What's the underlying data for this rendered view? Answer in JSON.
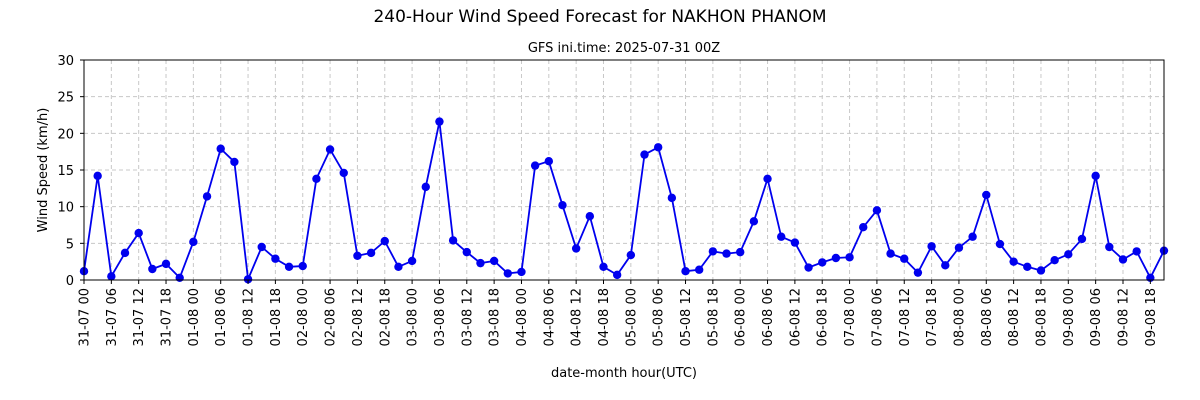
{
  "chart_data": {
    "type": "line",
    "title": "240-Hour Wind Speed Forecast for NAKHON PHANOM",
    "subtitle": "GFS ini.time: 2025-07-31 00Z",
    "xlabel": "date-month hour(UTC)",
    "ylabel": "Wind Speed (km/h)",
    "ylim": [
      0,
      30
    ],
    "yticks": [
      0,
      5,
      10,
      15,
      20,
      25,
      30
    ],
    "grid": true,
    "x_tick_labels": [
      "31-07 00",
      "31-07 06",
      "31-07 12",
      "31-07 18",
      "01-08 00",
      "01-08 06",
      "01-08 12",
      "01-08 18",
      "02-08 00",
      "02-08 06",
      "02-08 12",
      "02-08 18",
      "03-08 00",
      "03-08 06",
      "03-08 12",
      "03-08 18",
      "04-08 00",
      "04-08 06",
      "04-08 12",
      "04-08 18",
      "05-08 00",
      "05-08 06",
      "05-08 12",
      "05-08 18",
      "06-08 00",
      "06-08 06",
      "06-08 12",
      "06-08 18",
      "07-08 00",
      "07-08 06",
      "07-08 12",
      "07-08 18",
      "08-08 00",
      "08-08 06",
      "08-08 12",
      "08-08 18",
      "09-08 00",
      "09-08 06",
      "09-08 12",
      "09-08 18"
    ],
    "series": [
      {
        "color": "#0000ee",
        "x": [
          "31-07 00",
          "31-07 03",
          "31-07 06",
          "31-07 09",
          "31-07 12",
          "31-07 15",
          "31-07 18",
          "31-07 21",
          "01-08 00",
          "01-08 03",
          "01-08 06",
          "01-08 09",
          "01-08 12",
          "01-08 15",
          "01-08 18",
          "01-08 21",
          "02-08 00",
          "02-08 03",
          "02-08 06",
          "02-08 09",
          "02-08 12",
          "02-08 15",
          "02-08 18",
          "02-08 21",
          "03-08 00",
          "03-08 03",
          "03-08 06",
          "03-08 09",
          "03-08 12",
          "03-08 15",
          "03-08 18",
          "03-08 21",
          "04-08 00",
          "04-08 03",
          "04-08 06",
          "04-08 09",
          "04-08 12",
          "04-08 15",
          "04-08 18",
          "04-08 21",
          "05-08 00",
          "05-08 03",
          "05-08 06",
          "05-08 09",
          "05-08 12",
          "05-08 15",
          "05-08 18",
          "05-08 21",
          "06-08 00",
          "06-08 03",
          "06-08 06",
          "06-08 09",
          "06-08 12",
          "06-08 15",
          "06-08 18",
          "06-08 21",
          "07-08 00",
          "07-08 03",
          "07-08 06",
          "07-08 09",
          "07-08 12",
          "07-08 15",
          "07-08 18",
          "07-08 21",
          "08-08 00",
          "08-08 03",
          "08-08 06",
          "08-08 09",
          "08-08 12",
          "08-08 15",
          "08-08 18",
          "08-08 21",
          "09-08 00",
          "09-08 03",
          "09-08 06",
          "09-08 09",
          "09-08 12",
          "09-08 15",
          "09-08 18",
          "09-08 21"
        ],
        "values": [
          1.2,
          14.2,
          0.5,
          3.7,
          6.4,
          1.5,
          2.2,
          0.3,
          5.2,
          11.4,
          17.9,
          16.1,
          0.1,
          4.5,
          2.9,
          1.8,
          1.9,
          13.8,
          17.8,
          14.6,
          3.3,
          3.7,
          5.3,
          1.8,
          2.6,
          12.7,
          21.6,
          5.4,
          3.8,
          2.3,
          2.6,
          0.9,
          1.1,
          15.6,
          16.2,
          10.2,
          4.3,
          8.7,
          1.8,
          0.7,
          3.4,
          17.1,
          18.1,
          11.2,
          1.2,
          1.4,
          3.9,
          3.6,
          3.8,
          8.0,
          13.8,
          5.9,
          5.1,
          1.7,
          2.4,
          3.0,
          3.1,
          7.2,
          9.5,
          3.6,
          2.9,
          1.0,
          4.6,
          2.0,
          4.4,
          5.9,
          11.6,
          4.9,
          2.5,
          1.8,
          1.3,
          2.7,
          3.5,
          5.6,
          14.2,
          4.5,
          2.8,
          3.9,
          0.3,
          4.0
        ]
      }
    ]
  }
}
